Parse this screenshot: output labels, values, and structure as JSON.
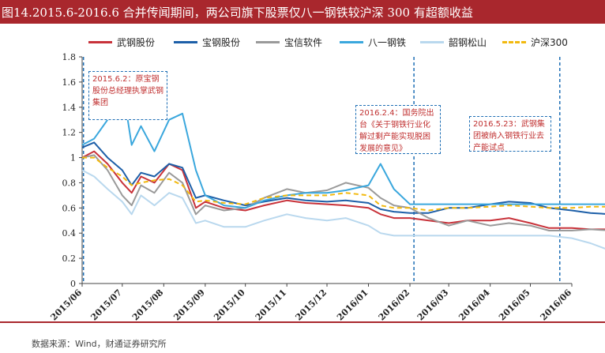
{
  "header": {
    "title": "图14.2015.6-2016.6 合并传闻期间，两公司旗下股票仅八一钢铁较沪深 300 有超额收益"
  },
  "footer": {
    "source": "数据来源：Wind，财通证券研究所"
  },
  "colors": {
    "brand": "#a9272d",
    "annotation_border": "#1f6fb5",
    "annotation_text": "#c03030"
  },
  "annotations": [
    {
      "date": "2015/06/02",
      "text": "2015.6.2：原宝钢股份总经理执掌武钢集团"
    },
    {
      "date": "2016/02/04",
      "text": "2016.2.4：国务院出台《关于钢铁行业化解过剩产能实现脱困发展的意见》"
    },
    {
      "date": "2016/05/23",
      "text": "2016.5.23：武钢集团被纳入钢铁行业去产能试点"
    }
  ],
  "chart_data": {
    "type": "line",
    "x_start": "2015/06",
    "x_end": "2016/06",
    "ylim": [
      0,
      1.8
    ],
    "yticks": [
      "0",
      "0.2",
      "0.4",
      "0.6",
      "0.8",
      "1",
      "1.2",
      "1.4",
      "1.6",
      "1.8"
    ],
    "xtick_labels": [
      "2015/06",
      "2015/07",
      "2015/08",
      "2015/09",
      "2015/10",
      "2015/11",
      "2015/12",
      "2016/01",
      "2016/02",
      "2016/03",
      "2016/04",
      "2016/05",
      "2016/06"
    ],
    "legend_position": "top",
    "grid": false,
    "x": [
      "2015/06/01",
      "2015/06/10",
      "2015/06/20",
      "2015/07/01",
      "2015/07/08",
      "2015/07/15",
      "2015/07/25",
      "2015/08/05",
      "2015/08/15",
      "2015/08/25",
      "2015/09/01",
      "2015/09/15",
      "2015/10/01",
      "2015/10/15",
      "2015/11/01",
      "2015/11/15",
      "2015/12/01",
      "2015/12/15",
      "2016/01/01",
      "2016/01/10",
      "2016/01/20",
      "2016/02/01",
      "2016/02/15",
      "2016/03/01",
      "2016/03/15",
      "2016/04/01",
      "2016/04/15",
      "2016/05/01",
      "2016/05/15",
      "2016/06/01",
      "2016/06/15",
      "2016/06/30"
    ],
    "series": [
      {
        "name": "武钢股份",
        "color": "#c8323a",
        "dashed": false,
        "values": [
          1.0,
          1.05,
          0.95,
          0.8,
          0.72,
          0.85,
          0.8,
          0.95,
          0.9,
          0.6,
          0.65,
          0.6,
          0.58,
          0.62,
          0.66,
          0.64,
          0.63,
          0.62,
          0.6,
          0.55,
          0.52,
          0.52,
          0.5,
          0.48,
          0.5,
          0.5,
          0.52,
          0.48,
          0.44,
          0.44,
          0.43,
          0.43
        ]
      },
      {
        "name": "宝钢股份",
        "color": "#1d5fa8",
        "dashed": false,
        "values": [
          1.08,
          1.12,
          1.0,
          0.9,
          0.78,
          0.88,
          0.85,
          0.95,
          0.92,
          0.68,
          0.7,
          0.66,
          0.62,
          0.65,
          0.68,
          0.66,
          0.65,
          0.66,
          0.64,
          0.59,
          0.57,
          0.56,
          0.56,
          0.6,
          0.6,
          0.63,
          0.65,
          0.64,
          0.6,
          0.58,
          0.56,
          0.55
        ]
      },
      {
        "name": "宝信软件",
        "color": "#9a9a9a",
        "dashed": false,
        "values": [
          1.0,
          1.02,
          0.9,
          0.7,
          0.62,
          0.78,
          0.72,
          0.88,
          0.8,
          0.55,
          0.62,
          0.58,
          0.6,
          0.68,
          0.75,
          0.72,
          0.74,
          0.8,
          0.76,
          0.68,
          0.62,
          0.6,
          0.52,
          0.46,
          0.5,
          0.46,
          0.48,
          0.46,
          0.42,
          0.42,
          0.43,
          0.42
        ]
      },
      {
        "name": "八一钢铁",
        "color": "#3aa7dd",
        "dashed": false,
        "values": [
          1.1,
          1.15,
          1.3,
          1.58,
          1.1,
          1.25,
          1.05,
          1.3,
          1.35,
          0.9,
          0.7,
          0.62,
          0.6,
          0.66,
          0.7,
          0.72,
          0.72,
          0.74,
          0.78,
          0.95,
          0.75,
          0.63,
          0.63,
          0.63,
          0.63,
          0.63,
          0.63,
          0.63,
          0.63,
          0.63,
          0.63,
          0.63
        ]
      },
      {
        "name": "韶钢松山",
        "color": "#b9d8ee",
        "dashed": false,
        "values": [
          0.9,
          0.85,
          0.75,
          0.65,
          0.55,
          0.7,
          0.62,
          0.72,
          0.68,
          0.48,
          0.5,
          0.45,
          0.45,
          0.5,
          0.55,
          0.52,
          0.5,
          0.52,
          0.46,
          0.4,
          0.38,
          0.38,
          0.38,
          0.38,
          0.38,
          0.38,
          0.38,
          0.38,
          0.38,
          0.36,
          0.32,
          0.26
        ]
      },
      {
        "name": "沪深300",
        "color": "#f2b90f",
        "dashed": true,
        "values": [
          1.0,
          1.0,
          0.92,
          0.85,
          0.78,
          0.8,
          0.82,
          0.83,
          0.78,
          0.65,
          0.66,
          0.64,
          0.63,
          0.68,
          0.7,
          0.7,
          0.7,
          0.72,
          0.7,
          0.62,
          0.6,
          0.6,
          0.58,
          0.6,
          0.6,
          0.61,
          0.62,
          0.61,
          0.6,
          0.6,
          0.61,
          0.61
        ]
      }
    ]
  }
}
